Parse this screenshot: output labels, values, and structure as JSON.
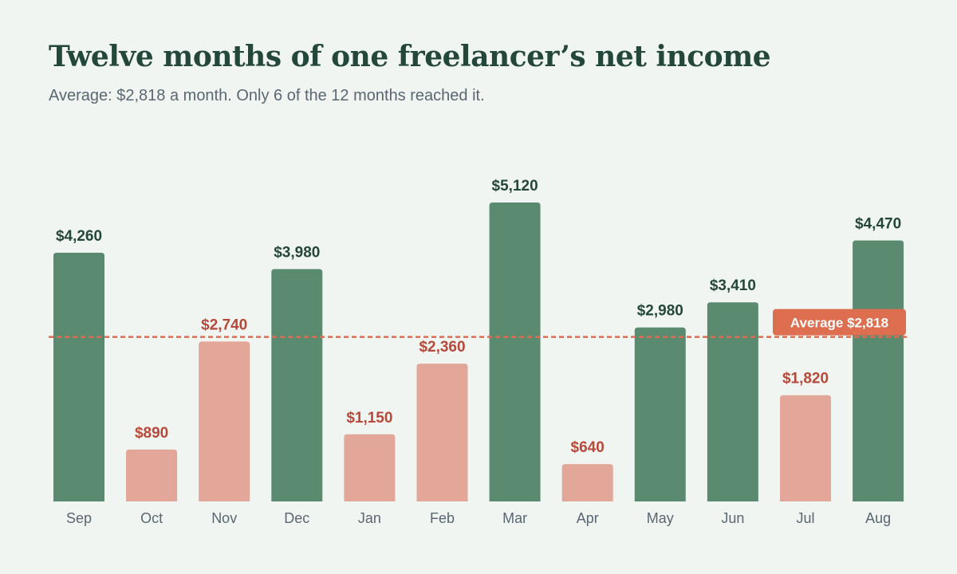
{
  "title": "Twelve months of one freelancer’s net income",
  "subtitle": "Average: $2,818 a month. Only 6 of the 12 months reached it.",
  "chart_data": {
    "type": "bar",
    "categories": [
      "Sep",
      "Oct",
      "Nov",
      "Dec",
      "Jan",
      "Feb",
      "Mar",
      "Apr",
      "May",
      "Jun",
      "Jul",
      "Aug"
    ],
    "values": [
      4260,
      890,
      2740,
      3980,
      1150,
      2360,
      5120,
      640,
      2980,
      3410,
      1820,
      4470
    ],
    "value_labels": [
      "$4,260",
      "$890",
      "$2,740",
      "$3,980",
      "$1,150",
      "$2,360",
      "$5,120",
      "$640",
      "$2,980",
      "$3,410",
      "$1,820",
      "$4,470"
    ],
    "ylim": [
      0,
      5120
    ],
    "average": 2818,
    "average_label": "Average $2,818",
    "colors": {
      "above_average": "#5a8a70",
      "below_average": "#e2a798",
      "label_above": "#24473b",
      "label_below": "#b8483a",
      "average_line": "#dd6e4f"
    },
    "grid": false,
    "legend": "none"
  }
}
